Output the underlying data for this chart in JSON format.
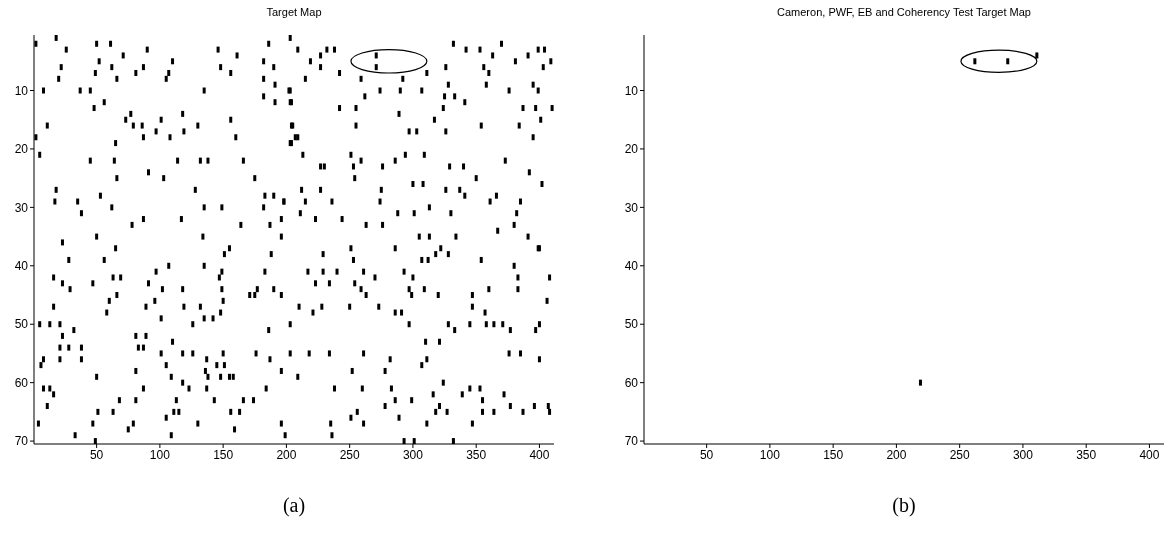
{
  "chart_data": [
    {
      "type": "scatter",
      "title": "Target Map",
      "marker": "square",
      "xlim": [
        0.5,
        411.5
      ],
      "ylim": [
        70.5,
        0.5
      ],
      "xticks": [
        50,
        100,
        150,
        200,
        250,
        300,
        350,
        400
      ],
      "yticks": [
        10,
        20,
        30,
        40,
        50,
        60,
        70
      ],
      "annotations": [
        "(a)"
      ],
      "series": [
        {
          "color": "#000000",
          "x": [
            2,
            18,
            26,
            50,
            61,
            90,
            71,
            52,
            62,
            22,
            87,
            110,
            81,
            107,
            105,
            66,
            49,
            20,
            8,
            37,
            45,
            48,
            56,
            77,
            73,
            86,
            79,
            97,
            101,
            118,
            130,
            156,
            11,
            2,
            87,
            108,
            119,
            160,
            65,
            5,
            45,
            64,
            114,
            132,
            138,
            166,
            91,
            103,
            66,
            175,
            18,
            128,
            53,
            183,
            190,
            17,
            35,
            62,
            38,
            135,
            149,
            198,
            182,
            78,
            87,
            117,
            164,
            187,
            196,
            50,
            134,
            196,
            23,
            65,
            203,
            186,
            146,
            161,
            182,
            190,
            156,
            148,
            182,
            191,
            182,
            191,
            135,
            202,
            204,
            204,
            203,
            207,
            209,
            227,
            232,
            238,
            219,
            227,
            215,
            242,
            259,
            271,
            271,
            292,
            311,
            326,
            332,
            342,
            353,
            370,
            363,
            356,
            360,
            391,
            399,
            404,
            403,
            409,
            381,
            203,
            262,
            274,
            290,
            307,
            325,
            333,
            328,
            358,
            376,
            395,
            399,
            203,
            242,
            255,
            289,
            324,
            317,
            341,
            387,
            397,
            401,
            410,
            205,
            255,
            297,
            303,
            326,
            354,
            384,
            395,
            209,
            204,
            213,
            251,
            294,
            309,
            227,
            230,
            253,
            259,
            276,
            286,
            329,
            340,
            373,
            392,
            254,
            275,
            300,
            308,
            350,
            212,
            227,
            326,
            337,
            341,
            402,
            198,
            215,
            236,
            274,
            361,
            366,
            385,
            211,
            223,
            244,
            288,
            301,
            313,
            330,
            382,
            263,
            276,
            305,
            313,
            334,
            367,
            380,
            391,
            399,
            229,
            251,
            28,
            16,
            23,
            29,
            47,
            56,
            63,
            69,
            66,
            60,
            58,
            16,
            5,
            13,
            21,
            32,
            23,
            21,
            28,
            38,
            38,
            21,
            8,
            6,
            8,
            13,
            16,
            11,
            4,
            33,
            47,
            49,
            50,
            51,
            63,
            75,
            79,
            81,
            81,
            83,
            87,
            89,
            87,
            68,
            81,
            89,
            91,
            97,
            96,
            107,
            102,
            101,
            101,
            105,
            109,
            110,
            113,
            105,
            111,
            115,
            109,
            118,
            119,
            118,
            118,
            123,
            126,
            126,
            130,
            132,
            135,
            135,
            142,
            137,
            136,
            137,
            138,
            143,
            145,
            148,
            149,
            147,
            149,
            150,
            151,
            150,
            151,
            148,
            155,
            155,
            158,
            156,
            159,
            163,
            166,
            171,
            175,
            177,
            174,
            176,
            183,
            186,
            187,
            184,
            188,
            190,
            196,
            196,
            196,
            199,
            203,
            203,
            209,
            210,
            217,
            218,
            221,
            223,
            228,
            229,
            234,
            234,
            240,
            238,
            235,
            236,
            250,
            253,
            254,
            252,
            251,
            256,
            259,
            260,
            261,
            261,
            261,
            263,
            270,
            273,
            278,
            278,
            282,
            283,
            286,
            286,
            289,
            286,
            291,
            293,
            293,
            297,
            297,
            299,
            299,
            300,
            301,
            307,
            307,
            309,
            310,
            311,
            311,
            312,
            316,
            318,
            318,
            320,
            321,
            321,
            322,
            324,
            327,
            328,
            328,
            332,
            333,
            339,
            345,
            345,
            347,
            347,
            347,
            353,
            354,
            355,
            355,
            357,
            358,
            360,
            364,
            364,
            371,
            372,
            376,
            377,
            377,
            380,
            383,
            383,
            385,
            387,
            396,
            397,
            400,
            400,
            400,
            406,
            407,
            408,
            408
          ],
          "values": [
            2,
            1,
            3,
            2,
            2,
            3,
            4,
            5,
            6,
            6,
            6,
            5,
            7,
            7,
            8,
            8,
            7,
            8,
            10,
            10,
            10,
            13,
            12,
            14,
            15,
            16,
            16,
            17,
            15,
            14,
            16,
            15,
            16,
            18,
            18,
            18,
            17,
            18,
            19,
            21,
            22,
            22,
            22,
            22,
            22,
            22,
            24,
            25,
            25,
            25,
            27,
            27,
            28,
            28,
            28,
            29,
            29,
            30,
            31,
            30,
            30,
            29,
            30,
            33,
            32,
            32,
            33,
            33,
            32,
            35,
            35,
            35,
            36,
            37,
            1,
            2,
            3,
            4,
            5,
            6,
            7,
            6,
            8,
            9,
            11,
            12,
            10,
            10,
            12,
            16,
            19,
            18,
            3,
            4,
            3,
            3,
            5,
            6,
            8,
            7,
            8,
            4,
            6,
            8,
            7,
            6,
            2,
            3,
            3,
            2,
            4,
            6,
            7,
            4,
            3,
            3,
            6,
            5,
            5,
            10,
            11,
            10,
            10,
            10,
            11,
            11,
            9,
            9,
            10,
            9,
            10,
            12,
            13,
            13,
            14,
            13,
            15,
            12,
            13,
            13,
            15,
            13,
            16,
            16,
            17,
            17,
            17,
            16,
            16,
            18,
            18,
            19,
            21,
            21,
            21,
            21,
            23,
            23,
            23,
            22,
            23,
            22,
            23,
            23,
            22,
            24,
            25,
            27,
            26,
            26,
            25,
            27,
            27,
            27,
            27,
            28,
            26,
            29,
            29,
            29,
            29,
            29,
            28,
            29,
            31,
            32,
            32,
            31,
            31,
            30,
            31,
            31,
            33,
            33,
            35,
            35,
            35,
            34,
            33,
            35,
            37,
            38,
            37,
            39,
            42,
            43,
            44,
            43,
            39,
            42,
            42,
            45,
            46,
            48,
            47,
            50,
            50,
            50,
            51,
            52,
            54,
            54,
            54,
            56,
            56,
            56,
            57,
            61,
            61,
            62,
            64,
            67,
            69,
            67,
            70,
            59,
            65,
            65,
            68,
            67,
            58,
            52,
            54,
            54,
            52,
            61,
            63,
            63,
            47,
            43,
            41,
            46,
            40,
            44,
            49,
            55,
            57,
            59,
            53,
            63,
            66,
            65,
            65,
            69,
            44,
            47,
            55,
            60,
            61,
            55,
            50,
            67,
            47,
            49,
            40,
            49,
            56,
            58,
            61,
            59,
            63,
            57,
            48,
            44,
            42,
            41,
            46,
            38,
            55,
            57,
            59,
            37,
            59,
            59,
            65,
            68,
            65,
            63,
            45,
            45,
            44,
            63,
            55,
            41,
            51,
            56,
            61,
            38,
            44,
            45,
            58,
            67,
            69,
            50,
            55,
            59,
            47,
            41,
            55,
            48,
            43,
            47,
            41,
            43,
            55,
            41,
            61,
            67,
            69,
            47,
            39,
            43,
            58,
            66,
            65,
            44,
            61,
            41,
            67,
            55,
            45,
            42,
            47,
            58,
            64,
            56,
            61,
            63,
            48,
            66,
            37,
            48,
            41,
            70,
            44,
            50,
            45,
            63,
            42,
            70,
            39,
            57,
            44,
            53,
            56,
            67,
            39,
            62,
            38,
            65,
            45,
            64,
            53,
            37,
            60,
            65,
            38,
            50,
            70,
            51,
            62,
            50,
            61,
            45,
            47,
            67,
            61,
            39,
            63,
            65,
            48,
            50,
            44,
            50,
            65,
            50,
            62,
            55,
            51,
            64,
            40,
            42,
            44,
            55,
            65,
            64,
            51,
            50,
            37,
            56,
            46,
            64,
            42,
            65
          ]
        }
      ]
    },
    {
      "type": "scatter",
      "title": "Cameron, PWF, EB and Coherency Test Target Map",
      "marker": "square",
      "xlim": [
        0.5,
        411.5
      ],
      "ylim": [
        70.5,
        0.5
      ],
      "xticks": [
        50,
        100,
        150,
        200,
        250,
        300,
        350,
        400
      ],
      "yticks": [
        10,
        20,
        30,
        40,
        50,
        60,
        70
      ],
      "annotations": [
        "(b)"
      ],
      "series": [
        {
          "color": "#000000",
          "x": [
            262,
            288,
            311,
            219
          ],
          "values": [
            5,
            5,
            4,
            60
          ]
        }
      ]
    }
  ]
}
